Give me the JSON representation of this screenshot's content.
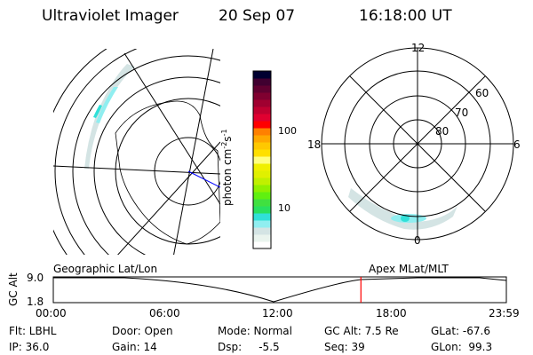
{
  "header": {
    "instrument": "Ultraviolet Imager",
    "date": "20 Sep 07",
    "time": "16:18:00 UT"
  },
  "colorbar": {
    "label": "photon cm-2s-1",
    "label_main": "photon cm",
    "sup1": "-2",
    "mid": "s",
    "sup2": "-1",
    "ticks": [
      "100",
      "10"
    ],
    "colors": [
      "#ffffff",
      "#eaf4ee",
      "#d4e4e4",
      "#90eef0",
      "#30e0d8",
      "#28e060",
      "#40e040",
      "#60f010",
      "#90f000",
      "#c0f000",
      "#e0f000",
      "#f0f000",
      "#ffff80",
      "#ffe000",
      "#ffc800",
      "#ffa800",
      "#ff8000",
      "#ff0000",
      "#e00030",
      "#c00030",
      "#a00030",
      "#800030",
      "#600030",
      "#400030",
      "#000030"
    ]
  },
  "polar": {
    "labels": {
      "top": "12",
      "bottom": "0",
      "left": "18",
      "right": "6"
    },
    "lat_labels": [
      "60",
      "70",
      "80"
    ]
  },
  "timeline": {
    "left_title": "Geographic Lat/Lon",
    "right_title": "Apex MLat/MLT",
    "y_axis_label": "GC Alt",
    "y_ticks": [
      "9.0",
      "1.8"
    ],
    "x_ticks": [
      "00:00",
      "06:00",
      "12:00",
      "18:00",
      "23:59"
    ],
    "current_time_fraction": 0.679,
    "marker_color": "#ff0000"
  },
  "info": {
    "flt": "Flt: LBHL",
    "ip": "IP: 36.0",
    "door": "Door: Open",
    "gain": "Gain: 14",
    "mode": "Mode: Normal",
    "dsp": "Dsp:     -5.5",
    "gcalt": "GC Alt: 7.5 Re",
    "seq": "Seq: 39",
    "glat": "GLat: -67.6",
    "glon": "GLon:  99.3"
  }
}
